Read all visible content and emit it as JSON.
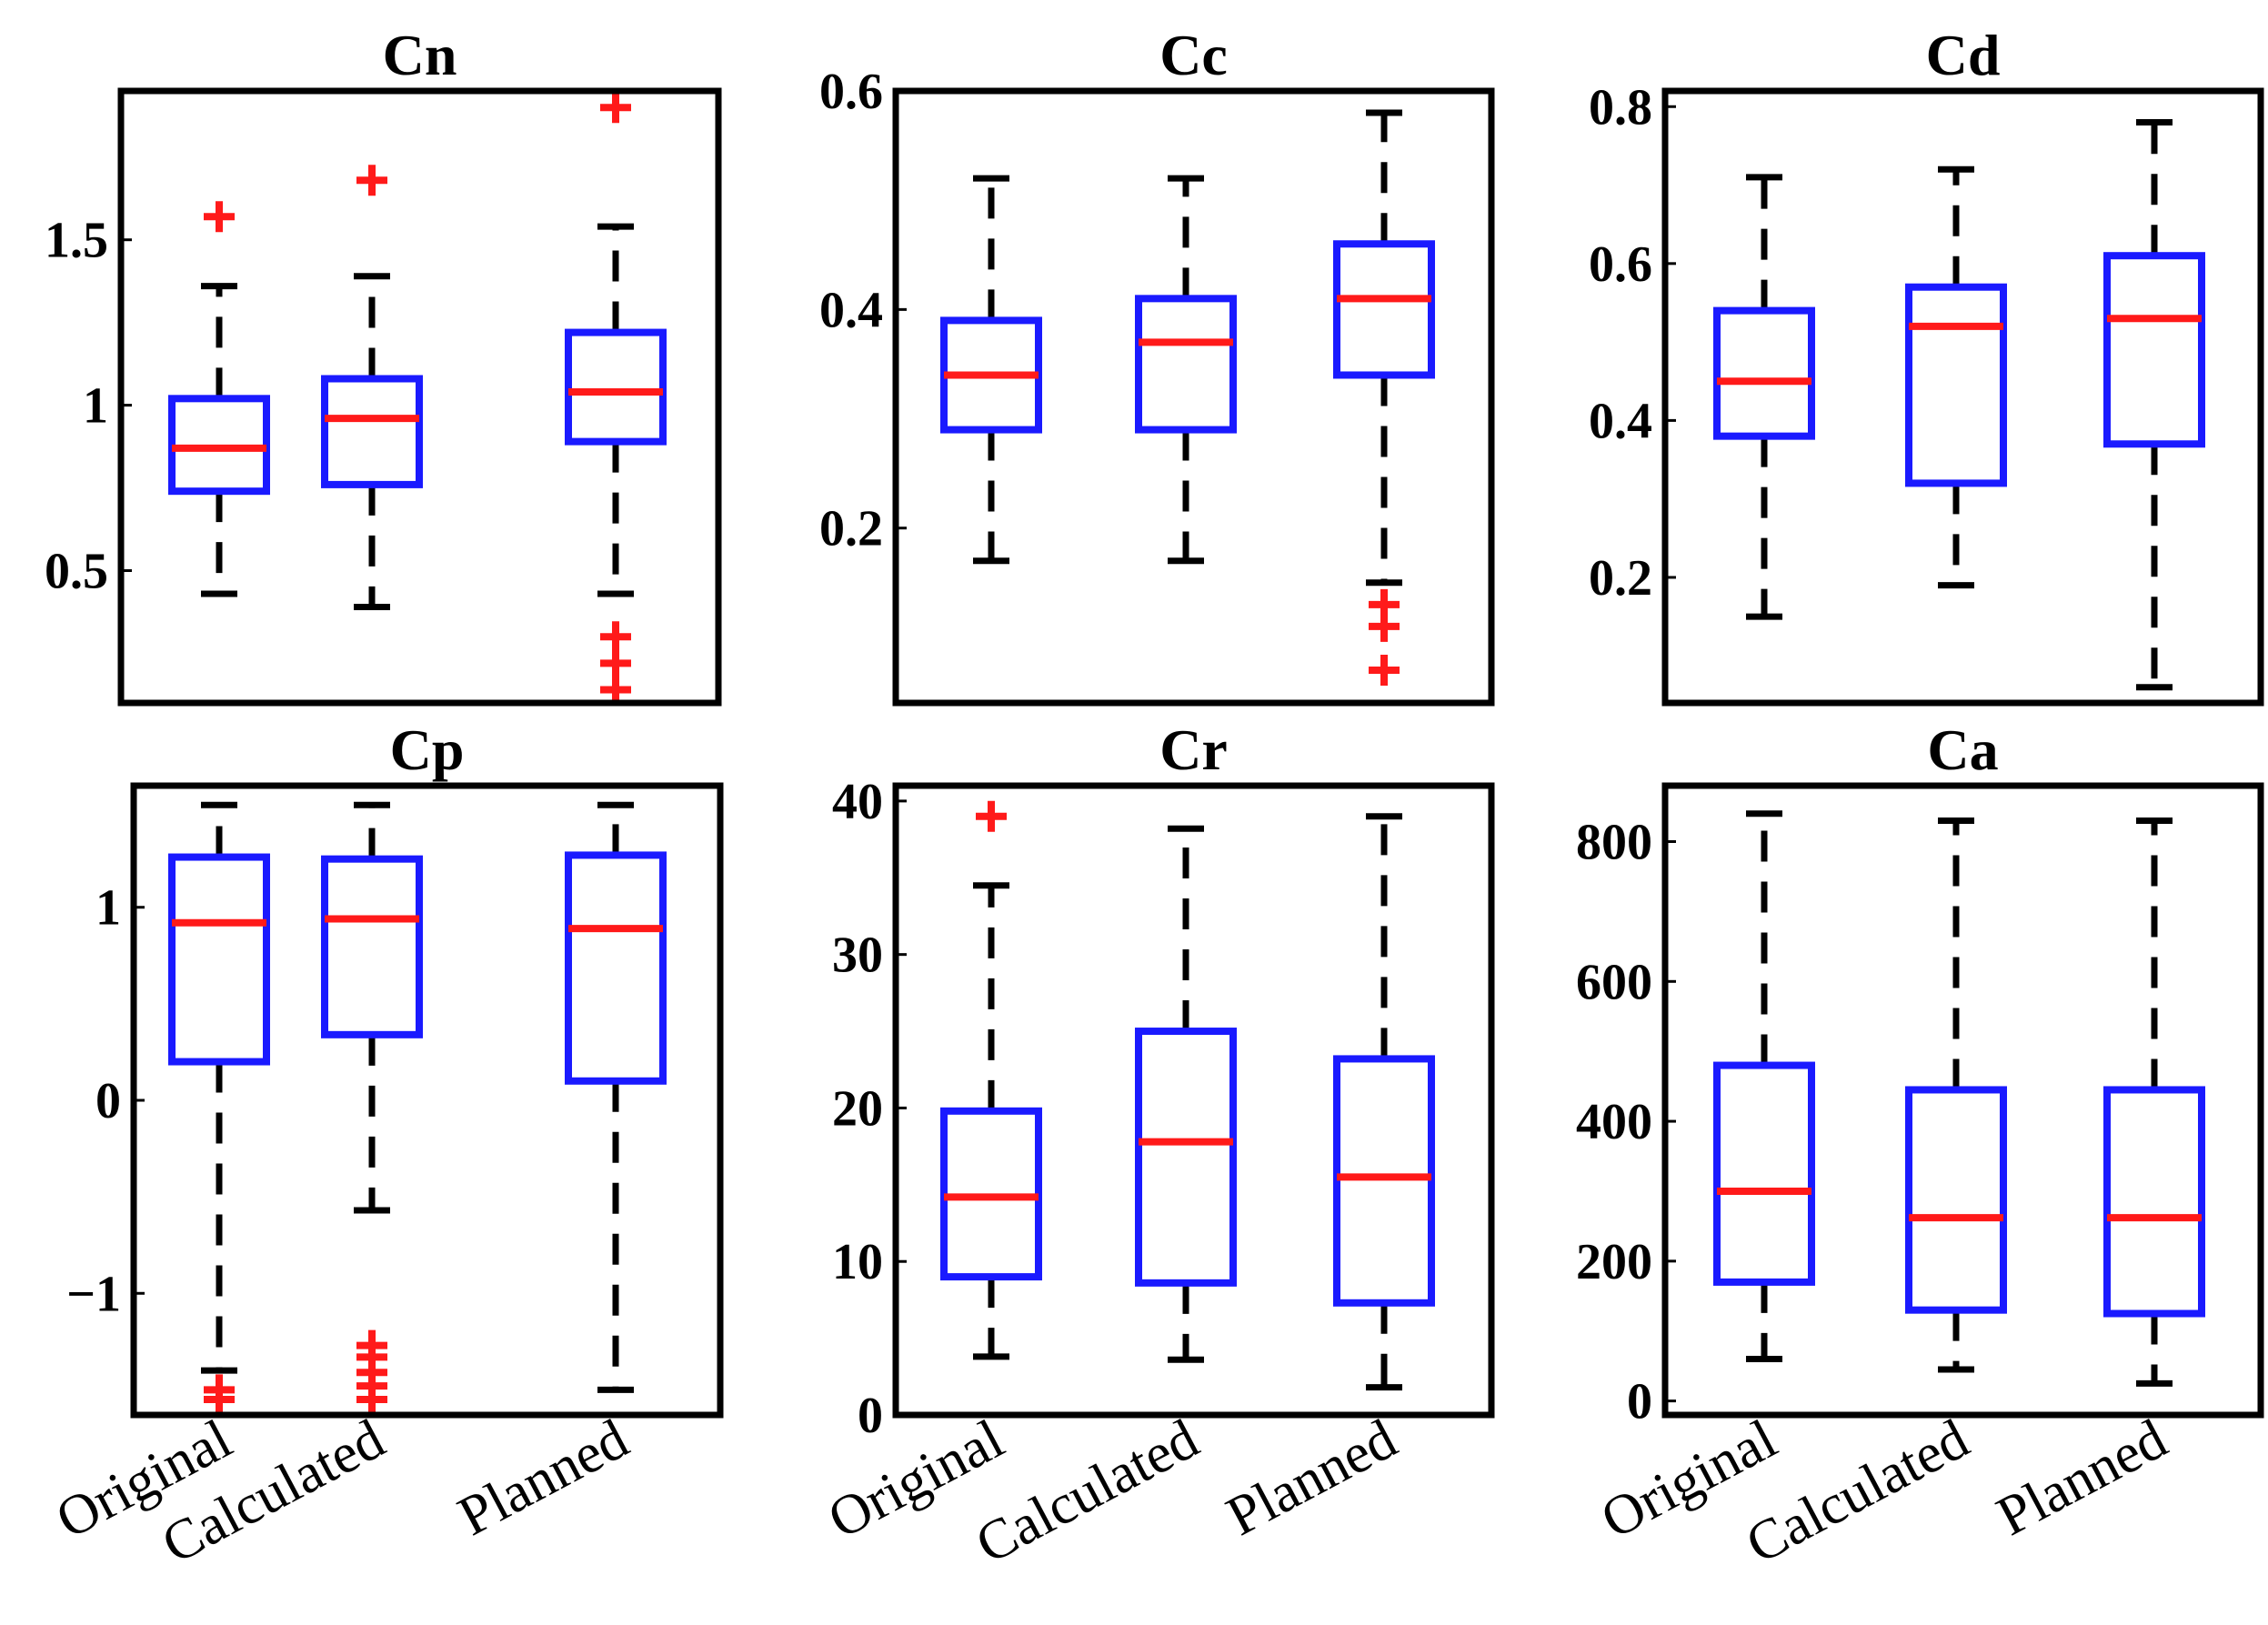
{
  "chart_data": [
    {
      "type": "box",
      "title": "Cn",
      "categories": [
        "Original",
        "Calculated",
        "Planned"
      ],
      "ylim": [
        0.1,
        1.95
      ],
      "yticks": [
        0.5,
        1,
        1.5
      ],
      "ytick_labels": [
        "0.5",
        "1",
        "1.5"
      ],
      "show_xtick_labels": false,
      "series": [
        {
          "name": "Original",
          "whisker_low": 0.43,
          "q1": 0.74,
          "median": 0.87,
          "q3": 1.02,
          "whisker_high": 1.36,
          "outliers": [
            1.57
          ]
        },
        {
          "name": "Calculated",
          "whisker_low": 0.39,
          "q1": 0.76,
          "median": 0.96,
          "q3": 1.08,
          "whisker_high": 1.39,
          "outliers": [
            1.68
          ]
        },
        {
          "name": "Planned",
          "whisker_low": 0.43,
          "q1": 0.89,
          "median": 1.04,
          "q3": 1.22,
          "whisker_high": 1.54,
          "outliers": [
            1.9,
            0.3,
            0.22,
            0.14
          ]
        }
      ]
    },
    {
      "type": "box",
      "title": "Cc",
      "categories": [
        "Original",
        "Calculated",
        "Planned"
      ],
      "ylim": [
        0.04,
        0.6
      ],
      "yticks": [
        0.2,
        0.4,
        0.6
      ],
      "ytick_labels": [
        "0.2",
        "0.4",
        "0.6"
      ],
      "show_xtick_labels": false,
      "series": [
        {
          "name": "Original",
          "whisker_low": 0.17,
          "q1": 0.29,
          "median": 0.34,
          "q3": 0.39,
          "whisker_high": 0.52,
          "outliers": []
        },
        {
          "name": "Calculated",
          "whisker_low": 0.17,
          "q1": 0.29,
          "median": 0.37,
          "q3": 0.41,
          "whisker_high": 0.52,
          "outliers": []
        },
        {
          "name": "Planned",
          "whisker_low": 0.15,
          "q1": 0.34,
          "median": 0.41,
          "q3": 0.46,
          "whisker_high": 0.58,
          "outliers": [
            0.13,
            0.11,
            0.07
          ]
        }
      ]
    },
    {
      "type": "box",
      "title": "Cd",
      "categories": [
        "Original",
        "Calculated",
        "Planned"
      ],
      "ylim": [
        0.04,
        0.82
      ],
      "yticks": [
        0.2,
        0.4,
        0.6,
        0.8
      ],
      "ytick_labels": [
        "0.2",
        "0.4",
        "0.6",
        "0.8"
      ],
      "show_xtick_labels": false,
      "series": [
        {
          "name": "Original",
          "whisker_low": 0.15,
          "q1": 0.38,
          "median": 0.45,
          "q3": 0.54,
          "whisker_high": 0.71,
          "outliers": []
        },
        {
          "name": "Calculated",
          "whisker_low": 0.19,
          "q1": 0.32,
          "median": 0.52,
          "q3": 0.57,
          "whisker_high": 0.72,
          "outliers": []
        },
        {
          "name": "Planned",
          "whisker_low": 0.06,
          "q1": 0.37,
          "median": 0.53,
          "q3": 0.61,
          "whisker_high": 0.78,
          "outliers": []
        }
      ]
    },
    {
      "type": "box",
      "title": "Cp",
      "categories": [
        "Original",
        "Calculated",
        "Planned"
      ],
      "ylim": [
        -1.63,
        1.63
      ],
      "yticks": [
        -1,
        0,
        1
      ],
      "ytick_labels": [
        "−1",
        "0",
        "1"
      ],
      "show_xtick_labels": true,
      "series": [
        {
          "name": "Original",
          "whisker_low": -1.4,
          "q1": 0.2,
          "median": 0.92,
          "q3": 1.26,
          "whisker_high": 1.53,
          "outliers": [
            -1.5,
            -1.55
          ]
        },
        {
          "name": "Calculated",
          "whisker_low": -0.57,
          "q1": 0.34,
          "median": 0.94,
          "q3": 1.25,
          "whisker_high": 1.53,
          "outliers": [
            -1.27,
            -1.33,
            -1.41,
            -1.48,
            -1.55
          ]
        },
        {
          "name": "Planned",
          "whisker_low": -1.5,
          "q1": 0.1,
          "median": 0.89,
          "q3": 1.27,
          "whisker_high": 1.53,
          "outliers": []
        }
      ]
    },
    {
      "type": "box",
      "title": "Cr",
      "categories": [
        "Original",
        "Calculated",
        "Planned"
      ],
      "ylim": [
        0,
        41
      ],
      "yticks": [
        0,
        10,
        20,
        30,
        40
      ],
      "ytick_labels": [
        "0",
        "10",
        "20",
        "30",
        "40"
      ],
      "show_xtick_labels": true,
      "series": [
        {
          "name": "Original",
          "whisker_low": 3.8,
          "q1": 9,
          "median": 14.2,
          "q3": 19.8,
          "whisker_high": 34.5,
          "outliers": [
            39
          ]
        },
        {
          "name": "Calculated",
          "whisker_low": 3.6,
          "q1": 8.6,
          "median": 17.8,
          "q3": 25,
          "whisker_high": 38.2,
          "outliers": []
        },
        {
          "name": "Planned",
          "whisker_low": 1.8,
          "q1": 7.3,
          "median": 15.5,
          "q3": 23.2,
          "whisker_high": 39,
          "outliers": []
        }
      ]
    },
    {
      "type": "box",
      "title": "Ca",
      "categories": [
        "Original",
        "Calculated",
        "Planned"
      ],
      "ylim": [
        -20,
        880
      ],
      "yticks": [
        0,
        200,
        400,
        600,
        800
      ],
      "ytick_labels": [
        "0",
        "200",
        "400",
        "600",
        "800"
      ],
      "show_xtick_labels": true,
      "series": [
        {
          "name": "Original",
          "whisker_low": 60,
          "q1": 170,
          "median": 300,
          "q3": 480,
          "whisker_high": 840,
          "outliers": []
        },
        {
          "name": "Calculated",
          "whisker_low": 45,
          "q1": 130,
          "median": 262,
          "q3": 445,
          "whisker_high": 830,
          "outliers": []
        },
        {
          "name": "Planned",
          "whisker_low": 25,
          "q1": 125,
          "median": 262,
          "q3": 445,
          "whisker_high": 830,
          "outliers": []
        }
      ]
    }
  ],
  "colors": {
    "box": "#1a1aff",
    "median": "#ff1a1a",
    "whisker": "#000000",
    "outlier": "#ff1a1a",
    "frame": "#000000"
  }
}
